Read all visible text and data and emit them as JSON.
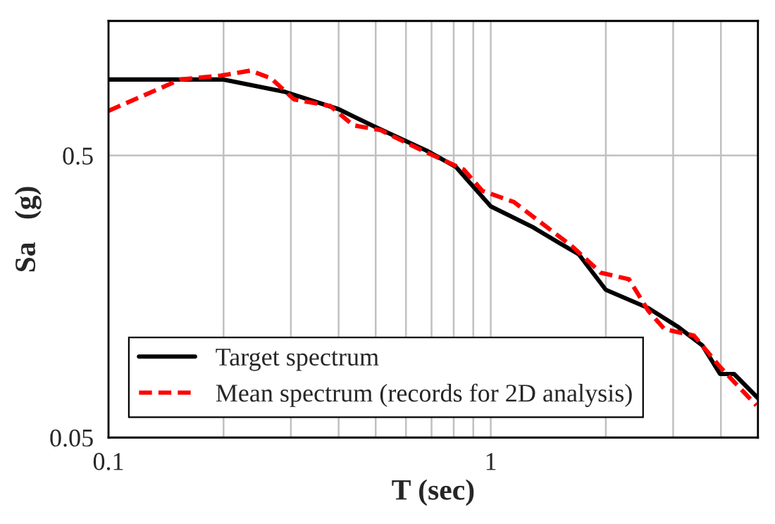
{
  "chart_data": {
    "type": "line",
    "xlabel": "T (sec)",
    "ylabel": "Sa   (g)",
    "log": "xy",
    "grid": true,
    "legend": "bottom left",
    "xlim": [
      0.1,
      5
    ],
    "ylim": [
      0.05,
      1.5
    ],
    "xticks": [
      0.1,
      {
        "value": 0.2,
        "label": null
      },
      {
        "value": 0.3,
        "label": null
      },
      {
        "value": 0.4,
        "label": null
      },
      {
        "value": 0.5,
        "label": null
      },
      {
        "value": 0.6,
        "label": null
      },
      {
        "value": 0.7,
        "label": null
      },
      {
        "value": 0.8,
        "label": null
      },
      {
        "value": 0.9,
        "label": null
      },
      1,
      {
        "value": 2,
        "label": null
      },
      {
        "value": 3,
        "label": null
      },
      {
        "value": 4,
        "label": null
      },
      {
        "value": 5,
        "label": null
      }
    ],
    "yticks": [
      0.05,
      0.5
    ],
    "series": [
      {
        "name": "Target spectrum",
        "color": "#000000",
        "line_style": "solid",
        "x": [
          0.1,
          0.2,
          0.29,
          0.4,
          0.5,
          0.68,
          0.81,
          0.92,
          1.0,
          1.28,
          1.51,
          1.7,
          2.0,
          2.58,
          3.1,
          3.58,
          3.98,
          4.33,
          5.0
        ],
        "values": [
          0.93,
          0.93,
          0.84,
          0.73,
          0.63,
          0.52,
          0.456,
          0.375,
          0.33,
          0.28,
          0.245,
          0.223,
          0.167,
          0.144,
          0.123,
          0.106,
          0.084,
          0.084,
          0.069
        ]
      },
      {
        "name": "Mean spectrum (records for 2D analysis)",
        "color": "#ff0000",
        "line_style": "dashed",
        "x": [
          0.1,
          0.154,
          0.197,
          0.235,
          0.266,
          0.306,
          0.38,
          0.437,
          0.515,
          0.645,
          0.85,
          0.95,
          1.15,
          1.64,
          1.94,
          2.3,
          2.58,
          2.85,
          3.4,
          3.98,
          4.95
        ],
        "values": [
          0.72,
          0.93,
          0.96,
          1.0,
          0.94,
          0.79,
          0.75,
          0.64,
          0.615,
          0.53,
          0.446,
          0.375,
          0.342,
          0.237,
          0.192,
          0.182,
          0.141,
          0.121,
          0.115,
          0.089,
          0.065
        ]
      }
    ]
  }
}
